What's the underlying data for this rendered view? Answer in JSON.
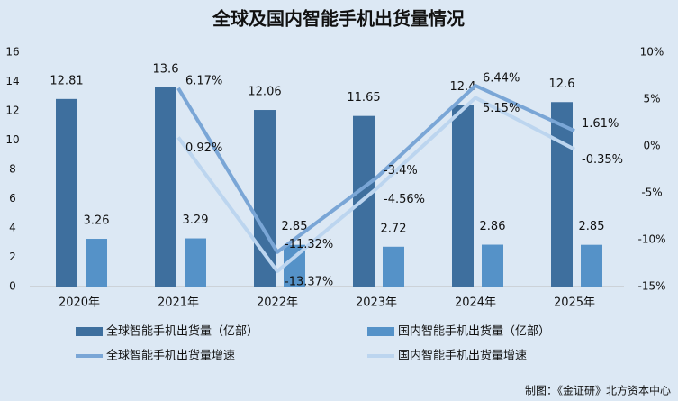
{
  "chart_data": {
    "type": "bar_line",
    "title": "全球及国内智能手机出货量情况",
    "categories": [
      "2020年",
      "2021年",
      "2022年",
      "2023年",
      "2024年",
      "2025年"
    ],
    "series": [
      {
        "name": "全球智能手机出货量（亿部）",
        "type": "bar",
        "color": "#3e6f9e",
        "values": [
          12.81,
          13.6,
          12.06,
          11.65,
          12.4,
          12.6
        ]
      },
      {
        "name": "国内智能手机出货量（亿部）",
        "type": "bar",
        "color": "#5592c8",
        "values": [
          3.26,
          3.29,
          2.85,
          2.72,
          2.86,
          2.85
        ]
      },
      {
        "name": "全球智能手机出货量增速",
        "type": "line",
        "axis": "y2",
        "color": "#7aa6d6",
        "values": [
          null,
          6.17,
          -11.32,
          -3.4,
          6.44,
          1.61
        ],
        "value_labels": [
          null,
          "6.17%",
          "-11.32%",
          "-3.4%",
          "6.44%",
          "1.61%"
        ]
      },
      {
        "name": "国内智能手机出货量增速",
        "type": "line",
        "axis": "y2",
        "color": "#bcd5ef",
        "values": [
          null,
          0.92,
          -13.37,
          -4.56,
          5.15,
          -0.35
        ],
        "value_labels": [
          null,
          "0.92%",
          "-13.37%",
          "-4.56%",
          "5.15%",
          "-0.35%"
        ]
      }
    ],
    "ylim": [
      0,
      16
    ],
    "yticks": [
      0,
      2,
      4,
      6,
      8,
      10,
      12,
      14,
      16
    ],
    "y2lim": [
      -15,
      10
    ],
    "y2ticks": [
      {
        "value": -15,
        "label": "-15%"
      },
      {
        "value": -10,
        "label": "-10%"
      },
      {
        "value": -5,
        "label": "-5%"
      },
      {
        "value": 0,
        "label": "0%"
      },
      {
        "value": 5,
        "label": "5%"
      },
      {
        "value": 10,
        "label": "10%"
      }
    ],
    "source": "制图：《金证研》北方资本中心"
  }
}
